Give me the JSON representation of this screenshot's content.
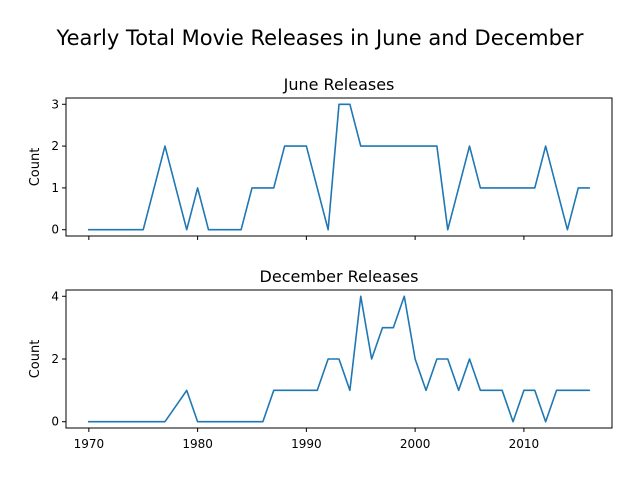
{
  "figure": {
    "title": "Yearly Total Movie Releases in June and December"
  },
  "chart_data": [
    {
      "type": "line",
      "title": "June Releases",
      "xlabel": "",
      "ylabel": "Count",
      "xlim": [
        1967.9,
        2018.1
      ],
      "ylim": [
        -0.15,
        3.15
      ],
      "xticks": [
        1970,
        1980,
        1990,
        2000,
        2010
      ],
      "xtick_labels_visible": false,
      "yticks": [
        0,
        1,
        2,
        3
      ],
      "grid": false,
      "x": [
        1970,
        1971,
        1972,
        1973,
        1974,
        1975,
        1976,
        1977,
        1978,
        1979,
        1980,
        1981,
        1982,
        1983,
        1984,
        1985,
        1986,
        1987,
        1988,
        1989,
        1990,
        1991,
        1992,
        1993,
        1994,
        1995,
        1996,
        1997,
        1998,
        1999,
        2000,
        2001,
        2002,
        2003,
        2004,
        2005,
        2006,
        2007,
        2008,
        2009,
        2010,
        2011,
        2012,
        2013,
        2014,
        2015,
        2016
      ],
      "values": [
        0,
        0,
        0,
        0,
        0,
        0,
        1,
        2,
        1,
        0,
        1,
        0,
        0,
        0,
        0,
        1,
        1,
        1,
        2,
        2,
        2,
        1,
        0,
        3,
        3,
        2,
        2,
        2,
        2,
        2,
        2,
        2,
        2,
        0,
        1,
        2,
        1,
        1,
        1,
        1,
        1,
        1,
        2,
        1,
        0,
        1,
        1
      ],
      "color": "#1f77b4"
    },
    {
      "type": "line",
      "title": "December Releases",
      "xlabel": "",
      "ylabel": "Count",
      "xlim": [
        1967.9,
        2018.1
      ],
      "ylim": [
        -0.2,
        4.2
      ],
      "xticks": [
        1970,
        1980,
        1990,
        2000,
        2010
      ],
      "xtick_labels_visible": true,
      "yticks": [
        0,
        2,
        4
      ],
      "grid": false,
      "x": [
        1970,
        1971,
        1972,
        1973,
        1974,
        1975,
        1976,
        1977,
        1978,
        1979,
        1980,
        1981,
        1982,
        1983,
        1984,
        1985,
        1986,
        1987,
        1988,
        1989,
        1990,
        1991,
        1992,
        1993,
        1994,
        1995,
        1996,
        1997,
        1998,
        1999,
        2000,
        2001,
        2002,
        2003,
        2004,
        2005,
        2006,
        2007,
        2008,
        2009,
        2010,
        2011,
        2012,
        2013,
        2014,
        2015,
        2016
      ],
      "values": [
        0,
        0,
        0,
        0,
        0,
        0,
        0,
        0,
        0.5,
        1,
        0,
        0,
        0,
        0,
        0,
        0,
        0,
        1,
        1,
        1,
        1,
        1,
        2,
        2,
        1,
        4,
        2,
        3,
        3,
        4,
        2,
        1,
        2,
        2,
        1,
        2,
        1,
        1,
        1,
        0,
        1,
        1,
        0,
        1,
        1,
        1,
        1
      ],
      "color": "#1f77b4"
    }
  ]
}
